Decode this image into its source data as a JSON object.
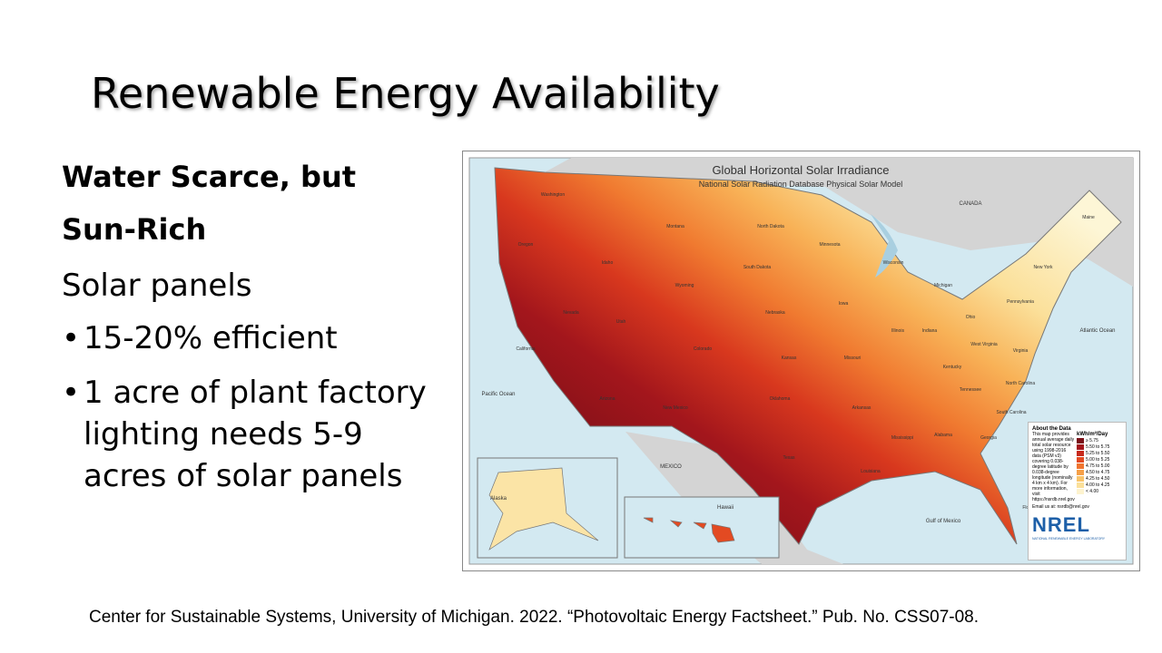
{
  "title": "Renewable Energy Availability",
  "body": {
    "heading_lines": [
      "Water Scarce, but",
      "Sun-Rich"
    ],
    "subheading": "Solar panels",
    "bullets": [
      "15-20% efficient",
      "1 acre of plant factory lighting needs 5-9 acres of solar panels"
    ]
  },
  "map": {
    "title": "Global Horizontal Solar Irradiance",
    "subtitle": "National Solar Radiation Database Physical Solar Model",
    "labels": [
      "Washington",
      "Oregon",
      "California",
      "Nevada",
      "Idaho",
      "Montana",
      "Wyoming",
      "Utah",
      "Arizona",
      "Colorado",
      "New Mexico",
      "Texas",
      "North Dakota",
      "South Dakota",
      "Nebraska",
      "Kansas",
      "Oklahoma",
      "Minnesota",
      "Iowa",
      "Missouri",
      "Arkansas",
      "Louisiana",
      "Wisconsin",
      "Illinois",
      "Michigan",
      "Indiana",
      "Ohio",
      "Kentucky",
      "Tennessee",
      "Mississippi",
      "Alabama",
      "Georgia",
      "Florida",
      "South Carolina",
      "North Carolina",
      "Virginia",
      "West Virginia",
      "Pennsylvania",
      "New York",
      "Maine",
      "CANADA",
      "MEXICO",
      "Pacific Ocean",
      "Atlantic Ocean",
      "Gulf of Mexico",
      "Alaska",
      "Hawaii"
    ],
    "legend": {
      "title": "About the Data",
      "description": "This map provides annual average daily total solar resource using 1998-2016 data (PSM v3) covering 0.038-degree latitude by 0.038-degree longitude (nominally 4 km x 4 km). For more information, visit https://nsrdb.nrel.gov",
      "email": "Email us at: nsrdb@nrel.gov",
      "unit": "kWh/m²/Day",
      "items": [
        {
          "label": "≥ 5.75",
          "color": "#7a0f17"
        },
        {
          "label": "5.50 to 5.75",
          "color": "#a3161c"
        },
        {
          "label": "5.25 to 5.50",
          "color": "#c72a1c"
        },
        {
          "label": "5.00 to 5.25",
          "color": "#e34a22"
        },
        {
          "label": "4.75 to 5.00",
          "color": "#f0752f"
        },
        {
          "label": "4.50 to 4.75",
          "color": "#f6a048"
        },
        {
          "label": "4.25 to 4.50",
          "color": "#f9c46b"
        },
        {
          "label": "4.00 to 4.25",
          "color": "#fbe09a"
        },
        {
          "label": "< 4.00",
          "color": "#fdf3cf"
        }
      ]
    },
    "logo": "NREL",
    "logo_subtitle": "NATIONAL RENEWABLE ENERGY LABORATORY"
  },
  "citation": "Center for Sustainable Systems, University of Michigan. 2022. “Photovoltaic Energy Factsheet.” Pub. No. CSS07-08."
}
